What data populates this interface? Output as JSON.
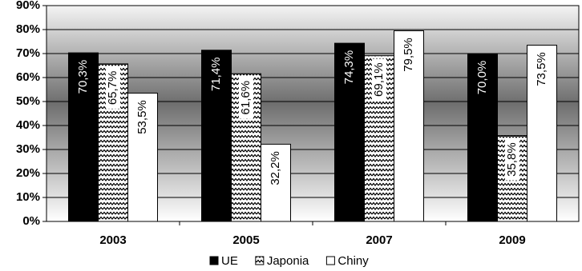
{
  "chart_data": {
    "type": "bar",
    "categories": [
      "2003",
      "2005",
      "2007",
      "2009"
    ],
    "series": [
      {
        "name": "UE",
        "color": "#000000",
        "values": [
          70.3,
          71.4,
          74.3,
          70.0
        ],
        "value_labels": [
          "70,3%",
          "71,4%",
          "74,3%",
          "70,0%"
        ]
      },
      {
        "name": "Japonia",
        "color": "#ffffff",
        "hatch": "zigzag",
        "values": [
          65.7,
          61.6,
          69.1,
          35.8
        ],
        "value_labels": [
          "65,7%",
          "61,6%",
          "69,1%",
          "35,8%"
        ]
      },
      {
        "name": "Chiny",
        "color": "#ffffff",
        "values": [
          53.5,
          32.2,
          79.5,
          73.5
        ],
        "value_labels": [
          "53,5%",
          "32,2%",
          "79,5%",
          "73,5%"
        ]
      }
    ],
    "ylim": [
      0,
      90
    ],
    "yticks": [
      {
        "value": 0,
        "label": "0%"
      },
      {
        "value": 10,
        "label": "10%"
      },
      {
        "value": 20,
        "label": "20%"
      },
      {
        "value": 30,
        "label": "30%"
      },
      {
        "value": 40,
        "label": "40%"
      },
      {
        "value": 50,
        "label": "50%"
      },
      {
        "value": 60,
        "label": "60%"
      },
      {
        "value": 70,
        "label": "70%"
      },
      {
        "value": 80,
        "label": "80%"
      },
      {
        "value": 90,
        "label": "90%"
      }
    ],
    "grid": true,
    "legend": "bottom"
  }
}
